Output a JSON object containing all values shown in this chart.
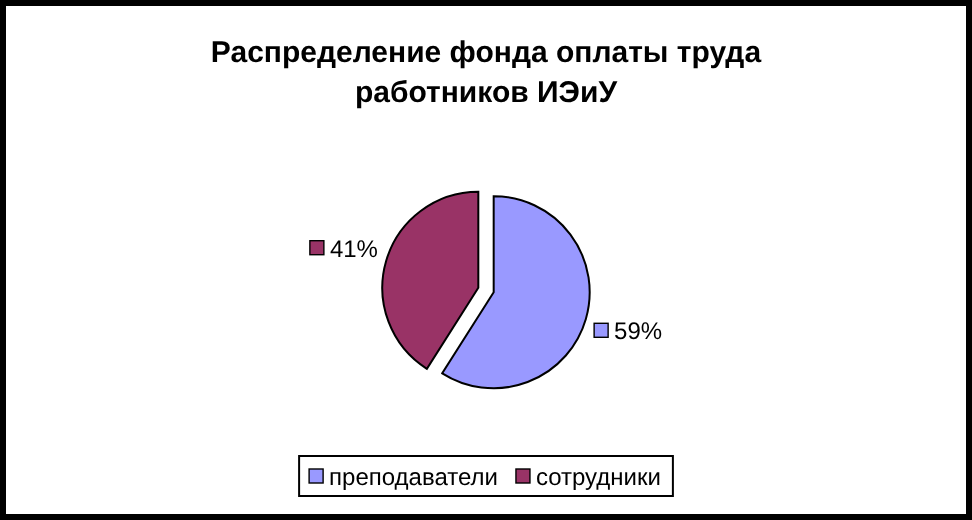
{
  "chart_data": {
    "type": "pie",
    "title": "Распределение фонда оплаты труда работников ИЭиУ",
    "categories": [
      "преподаватели",
      "сотрудники"
    ],
    "values": [
      59,
      41
    ],
    "colors": [
      "#9999ff",
      "#993366"
    ],
    "value_labels": [
      "59%",
      "41%"
    ],
    "legend": "bottom"
  }
}
